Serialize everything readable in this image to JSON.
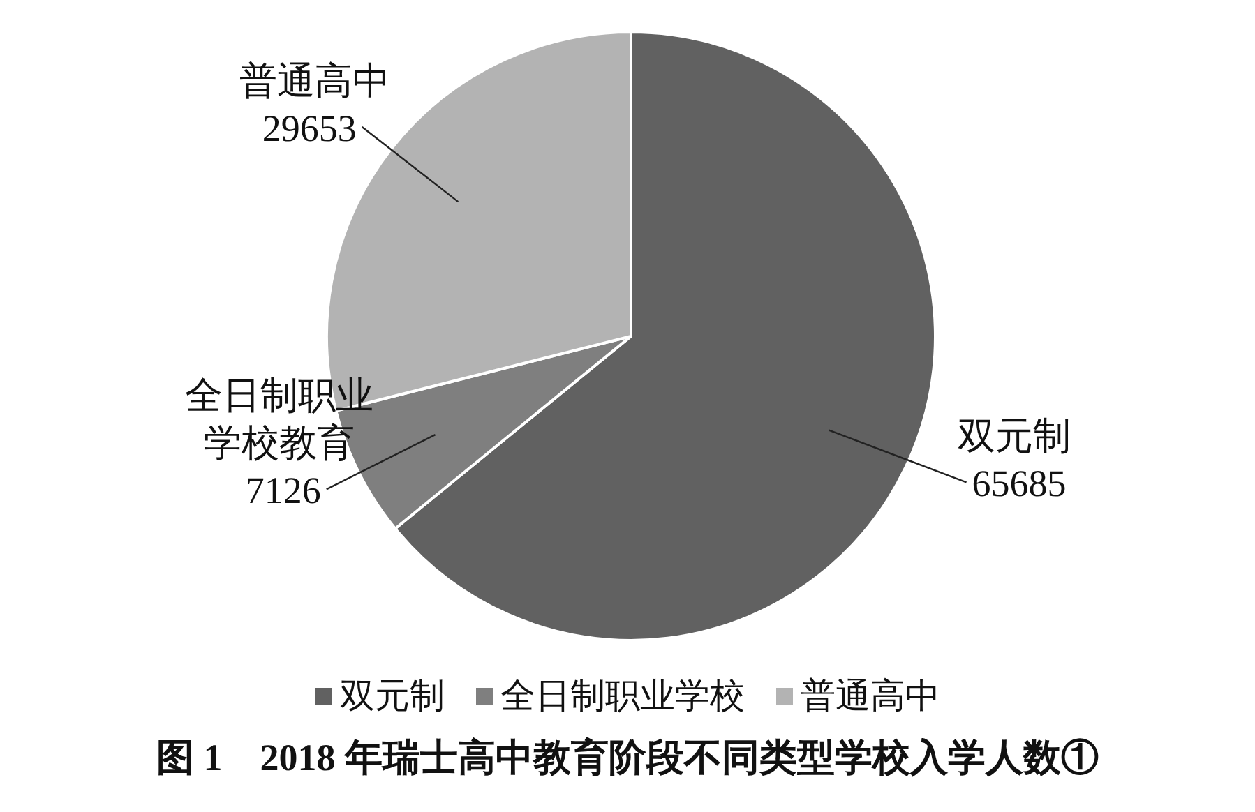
{
  "chart_data": {
    "type": "pie",
    "title": "图 1　2018 年瑞士高中教育阶段不同类型学校入学人数①",
    "categories": [
      "双元制",
      "全日制职业学校",
      "普通高中"
    ],
    "values": [
      65685,
      7126,
      29653
    ],
    "colors": [
      "#616161",
      "#7f7f7f",
      "#b3b3b3"
    ],
    "data_labels": true,
    "annotations": [
      {
        "text": "双元制",
        "x": "双元制"
      },
      {
        "text": "全日制职业学校教育",
        "x": "全日制职业学校"
      },
      {
        "text": "普通高中",
        "x": "普通高中"
      }
    ],
    "legend": "bottom"
  }
}
